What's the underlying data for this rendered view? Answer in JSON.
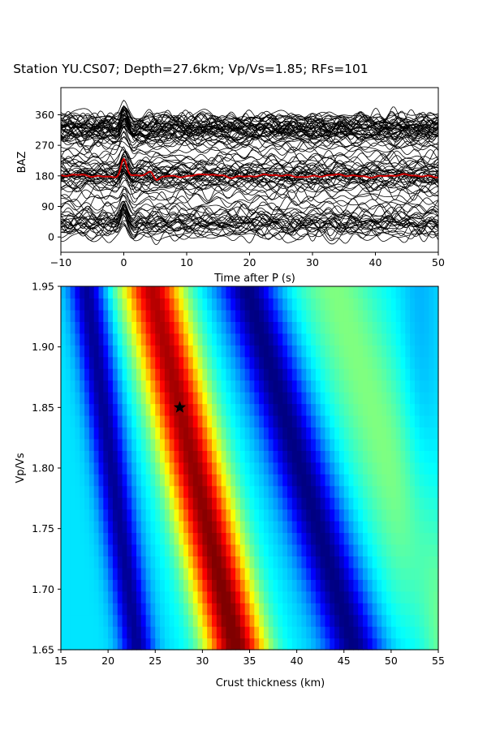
{
  "chart_data": [
    {
      "type": "line",
      "title": "Station YU.CS07; Depth=27.6km; Vp/Vs=1.85; RFs=101",
      "xlabel": "Time after P (s)",
      "ylabel": "BAZ",
      "xlim": [
        -10,
        50
      ],
      "ylim": [
        -45,
        440
      ],
      "xticks": [
        -10,
        0,
        10,
        20,
        30,
        40,
        50
      ],
      "yticks": [
        0,
        90,
        180,
        270,
        360
      ],
      "traces": {
        "count": 101,
        "color": "#000000",
        "baz_values": [
          0,
          5,
          10,
          15,
          20,
          25,
          28,
          30,
          33,
          35,
          38,
          40,
          42,
          45,
          48,
          50,
          52,
          55,
          60,
          65,
          70,
          75,
          80,
          90,
          100,
          110,
          120,
          130,
          140,
          145,
          150,
          155,
          160,
          163,
          165,
          167,
          170,
          172,
          175,
          177,
          180,
          182,
          185,
          187,
          190,
          192,
          195,
          198,
          200,
          205,
          210,
          215,
          220,
          225,
          230,
          240,
          250,
          260,
          270,
          275,
          280,
          285,
          290,
          292,
          295,
          297,
          300,
          302,
          305,
          307,
          308,
          310,
          312,
          313,
          315,
          317,
          318,
          320,
          322,
          323,
          325,
          327,
          328,
          330,
          332,
          335,
          337,
          340,
          342,
          345,
          348,
          350,
          352,
          355,
          358,
          330,
          315,
          300,
          188,
          175,
          40
        ]
      },
      "stack": {
        "color": "#d00000",
        "baz": 180,
        "peaks": [
          {
            "t": 0,
            "amp": 1.0
          },
          {
            "t": 4.3,
            "amp": 0.2
          },
          {
            "t": 5.2,
            "amp": -0.25
          },
          {
            "t": 7.0,
            "amp": 0.05
          },
          {
            "t": 13.0,
            "amp": 0.08
          },
          {
            "t": 17.0,
            "amp": -0.05
          }
        ]
      }
    },
    {
      "type": "heatmap",
      "xlabel": "Crust thickness (km)",
      "ylabel": "Vp/Vs",
      "xlim": [
        15,
        55
      ],
      "ylim": [
        1.65,
        1.95
      ],
      "xticks": [
        15,
        20,
        25,
        30,
        35,
        40,
        45,
        50,
        55
      ],
      "yticks": [
        "1.65",
        "1.70",
        "1.75",
        "1.80",
        "1.85",
        "1.90",
        "1.95"
      ],
      "colormap": "jet",
      "best": {
        "H": 27.6,
        "k": 1.85,
        "marker": "star"
      }
    }
  ]
}
